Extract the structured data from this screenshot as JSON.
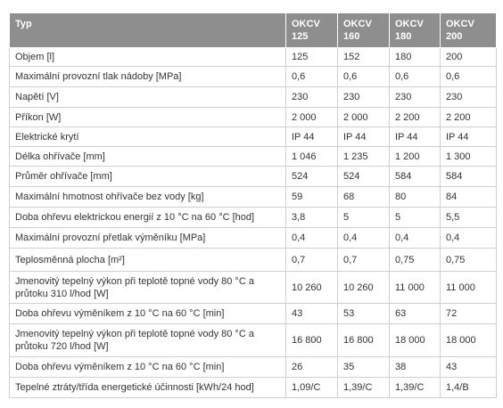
{
  "table": {
    "header": [
      "Typ",
      "OKCV 125",
      "OKCV 160",
      "OKCV 180",
      "OKCV 200"
    ],
    "rows": [
      [
        "Objem [l]",
        "125",
        "152",
        "180",
        "200"
      ],
      [
        "Maximální provozní tlak nádoby [MPa]",
        "0,6",
        "0,6",
        "0,6",
        "0,6"
      ],
      [
        "Napětí [V]",
        "230",
        "230",
        "230",
        "230"
      ],
      [
        "Příkon [W]",
        "2 000",
        "2 000",
        "2 200",
        "2 200"
      ],
      [
        "Elektrické krytí",
        "IP 44",
        "IP 44",
        "IP 44",
        "IP 44"
      ],
      [
        "Délka ohřívače [mm]",
        "1 046",
        "1 235",
        "1 200",
        "1 300"
      ],
      [
        "Průměr ohřívače [mm]",
        "524",
        "524",
        "584",
        "584"
      ],
      [
        "Maximální hmotnost ohřívače bez vody [kg]",
        "59",
        "68",
        "80",
        "84"
      ],
      [
        "Doba ohřevu elektrickou energií z 10 °C na 60 °C [hod]",
        "3,8",
        "5",
        "5",
        "5,5"
      ],
      [
        "Maximální provozní přetlak výměníku [MPa]",
        "0,4",
        "0,4",
        "0,4",
        "0,4"
      ],
      [
        "Teplosměnná plocha [m²]",
        "0,7",
        "0,7",
        "0,75",
        "0,75"
      ],
      [
        "Jmenovitý tepelný výkon při teplotě topné vody 80 °C a průtoku 310 l/hod [W]",
        "10 260",
        "10 260",
        "11 000",
        "11 000"
      ],
      [
        "Doba ohřevu výměníkem z 10 °C na 60 °C [min]",
        "43",
        "53",
        "63",
        "72"
      ],
      [
        "Jmenovitý tepelný výkon při teplotě topné vody 80 °C a průtoku 720 l/hod [W]",
        "16 800",
        "16 800",
        "18 000",
        "18 000"
      ],
      [
        "Doba ohřevu výměníkem z 10 °C na 60 °C [min]",
        "26",
        "35",
        "38",
        "43"
      ],
      [
        "Tepelné ztráty/třída energetické účinnosti [kWh/24 hod]",
        "1,09/C",
        "1,39/C",
        "1,39/C",
        "1,4/B"
      ]
    ]
  }
}
